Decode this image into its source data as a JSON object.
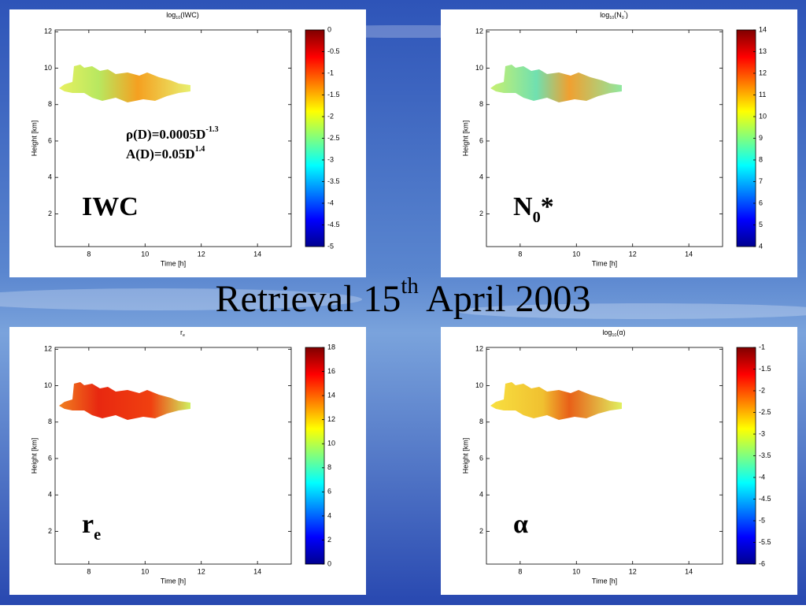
{
  "slide_title": [
    {
      "text": "Retrieval 15"
    },
    {
      "text": "th",
      "sup": true
    },
    {
      "text": " April 2003"
    }
  ],
  "chart_data": [
    {
      "type": "heatmap",
      "title": [
        {
          "text": "log"
        },
        {
          "text": "10",
          "sub": true
        },
        {
          "text": "(IWC)"
        }
      ],
      "xlabel": "Time [h]",
      "ylabel": "Height [km]",
      "xlim": [
        6.8,
        15.2
      ],
      "ylim": [
        0.2,
        12.1
      ],
      "xticks": [
        8,
        10,
        12,
        14
      ],
      "yticks": [
        2,
        4,
        6,
        8,
        10,
        12
      ],
      "clim": [
        -5,
        0
      ],
      "cticks": [
        0,
        -0.5,
        -1,
        -1.5,
        -2,
        -2.5,
        -3,
        -3.5,
        -4,
        -4.5,
        -5
      ],
      "annotations": [
        [
          {
            "text": "ρ(D)=0.0005D"
          },
          {
            "text": "-1.3",
            "sup": true
          }
        ],
        [
          {
            "text": "A(D)=0.05D"
          },
          {
            "text": "1.4",
            "sup": true
          }
        ]
      ],
      "label": [
        {
          "text": "IWC"
        }
      ]
    },
    {
      "type": "heatmap",
      "title": [
        {
          "text": "log"
        },
        {
          "text": "10",
          "sub": true
        },
        {
          "text": "(N"
        },
        {
          "text": "0",
          "sub": true
        },
        {
          "text": "*",
          "sup": true
        },
        {
          "text": ")"
        }
      ],
      "xlabel": "Time [h]",
      "ylabel": "Height [km]",
      "xlim": [
        6.8,
        15.2
      ],
      "ylim": [
        0.2,
        12.1
      ],
      "xticks": [
        8,
        10,
        12,
        14
      ],
      "yticks": [
        2,
        4,
        6,
        8,
        10,
        12
      ],
      "clim": [
        4,
        14
      ],
      "cticks": [
        4,
        5,
        6,
        7,
        8,
        9,
        10,
        11,
        12,
        13,
        14
      ],
      "label": [
        {
          "text": "N"
        },
        {
          "text": "0",
          "sub": true
        },
        {
          "text": "*"
        }
      ]
    },
    {
      "type": "heatmap",
      "title": [
        {
          "text": "r"
        },
        {
          "text": "e",
          "sub": true
        }
      ],
      "xlabel": "Time [h]",
      "ylabel": "Height [km]",
      "xlim": [
        6.8,
        15.2
      ],
      "ylim": [
        0.2,
        12.1
      ],
      "xticks": [
        8,
        10,
        12,
        14
      ],
      "yticks": [
        2,
        4,
        6,
        8,
        10,
        12
      ],
      "clim": [
        0,
        18
      ],
      "cticks": [
        0,
        2,
        4,
        6,
        8,
        10,
        12,
        14,
        16,
        18
      ],
      "label": [
        {
          "text": "r"
        },
        {
          "text": "e",
          "sub": true
        }
      ]
    },
    {
      "type": "heatmap",
      "title": [
        {
          "text": "log"
        },
        {
          "text": "10",
          "sub": true
        },
        {
          "text": "(α)"
        }
      ],
      "xlabel": "Time [h]",
      "ylabel": "Height [km]",
      "xlim": [
        6.8,
        15.2
      ],
      "ylim": [
        0.2,
        12.1
      ],
      "xticks": [
        8,
        10,
        12,
        14
      ],
      "yticks": [
        2,
        4,
        6,
        8,
        10,
        12
      ],
      "clim": [
        -6,
        -1
      ],
      "cticks": [
        -1,
        -1.5,
        -2,
        -2.5,
        -3,
        -3.5,
        -4,
        -4.5,
        -5,
        -5.5,
        -6
      ],
      "label": [
        {
          "text": "α"
        }
      ]
    }
  ]
}
